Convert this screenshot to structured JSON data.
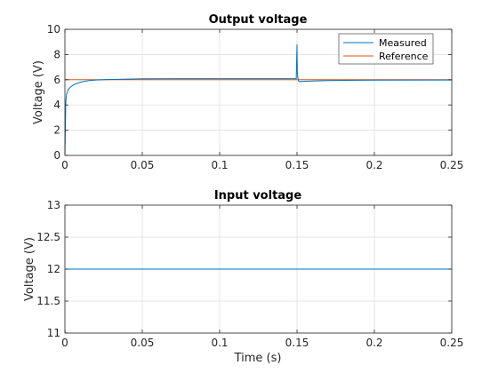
{
  "chart_data": [
    {
      "type": "line",
      "title": "Output voltage",
      "xlabel": "",
      "ylabel": "Voltage (V)",
      "xlim": [
        0,
        0.25
      ],
      "ylim": [
        0,
        10
      ],
      "xticks": [
        0,
        0.05,
        0.1,
        0.15,
        0.2,
        0.25
      ],
      "xtick_labels": [
        "0",
        "0.05",
        "0.1",
        "0.15",
        "0.2",
        "0.25"
      ],
      "yticks": [
        0,
        2,
        4,
        6,
        8,
        10
      ],
      "ytick_labels": [
        "0",
        "2",
        "4",
        "6",
        "8",
        "10"
      ],
      "grid": true,
      "legend_position": "top-right",
      "series": [
        {
          "name": "Measured",
          "color": "#0072bd",
          "x": [
            0,
            0.0003,
            0.0006,
            0.001,
            0.0015,
            0.002,
            0.003,
            0.004,
            0.005,
            0.006,
            0.008,
            0.01,
            0.012,
            0.015,
            0.018,
            0.02,
            0.025,
            0.03,
            0.04,
            0.05,
            0.07,
            0.1,
            0.12,
            0.149,
            0.1495,
            0.15,
            0.1502,
            0.1505,
            0.151,
            0.152,
            0.155,
            0.16,
            0.17,
            0.18,
            0.2,
            0.25
          ],
          "y": [
            0,
            2.3,
            4.3,
            4.8,
            5.0,
            5.2,
            5.35,
            5.45,
            5.55,
            5.62,
            5.72,
            5.8,
            5.86,
            5.92,
            5.96,
            5.98,
            6.0,
            6.02,
            6.05,
            6.07,
            6.08,
            6.08,
            6.08,
            6.08,
            6.1,
            8.8,
            6.6,
            6.2,
            5.9,
            5.85,
            5.88,
            5.9,
            5.93,
            5.95,
            5.97,
            5.98
          ]
        },
        {
          "name": "Reference",
          "color": "#d95319",
          "x": [
            0,
            0.25
          ],
          "y": [
            6,
            6
          ]
        }
      ]
    },
    {
      "type": "line",
      "title": "Input voltage",
      "xlabel": "Time (s)",
      "ylabel": "Voltage (V)",
      "xlim": [
        0,
        0.25
      ],
      "ylim": [
        11,
        13
      ],
      "xticks": [
        0,
        0.05,
        0.1,
        0.15,
        0.2,
        0.25
      ],
      "xtick_labels": [
        "0",
        "0.05",
        "0.1",
        "0.15",
        "0.2",
        "0.25"
      ],
      "yticks": [
        11,
        11.5,
        12,
        12.5,
        13
      ],
      "ytick_labels": [
        "11",
        "11.5",
        "12",
        "12.5",
        "13"
      ],
      "grid": true,
      "series": [
        {
          "color": "#0072bd",
          "x": [
            0,
            0.25
          ],
          "y": [
            12,
            12
          ]
        }
      ]
    }
  ]
}
